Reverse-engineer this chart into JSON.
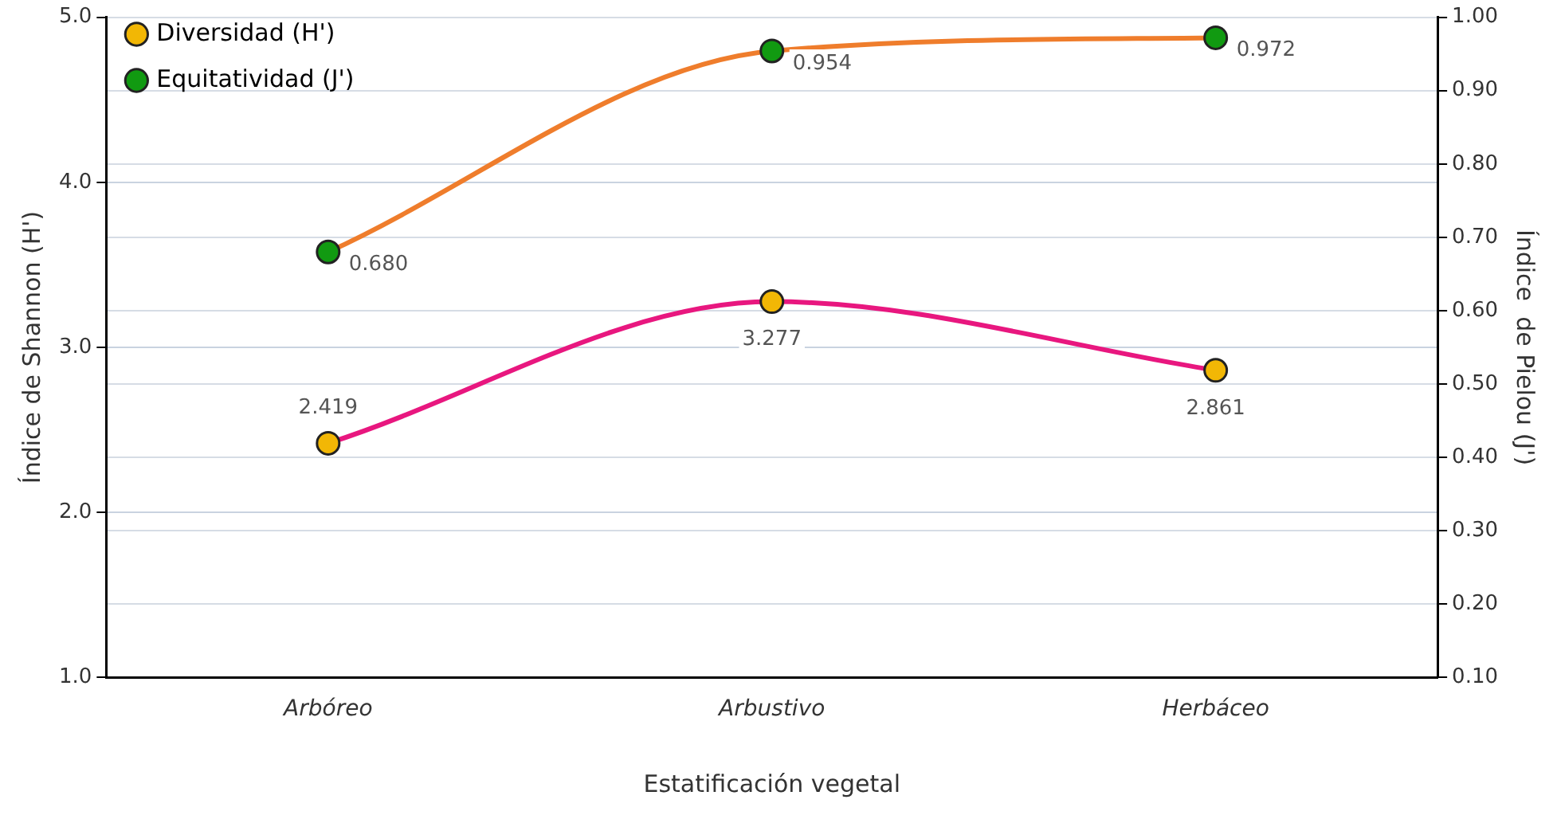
{
  "chart_data": {
    "type": "line",
    "xlabel": "Estatificación vegetal",
    "ylabel": "Índice de Shannon (H')",
    "y2label": "Índice  de Pielou (J')",
    "categories": [
      "Arbóreo",
      "Arbustivo",
      "Herbáceo"
    ],
    "series": [
      {
        "name": "Diversidad (H')",
        "color": "#e8177f",
        "colors": [
          "#f2b705",
          "#f2b705",
          "#f2b705"
        ],
        "values": [
          2.419,
          3.277,
          2.861
        ],
        "value_labels": [
          "2.419",
          "3.277",
          "2.861"
        ]
      },
      {
        "name": "Equitatividad (J')",
        "color": "#ef7d2c",
        "colors": [
          "#119a11",
          "#119a11",
          "#119a11"
        ],
        "values": [
          0.68,
          0.954,
          0.972
        ],
        "value_labels": [
          "0.680",
          "0.954",
          "0.972"
        ],
        "axis": "y2"
      }
    ],
    "ylim": [
      1,
      5
    ],
    "yticks": [
      {
        "value": 1,
        "label": "1.0"
      },
      {
        "value": 2,
        "label": "2.0"
      },
      {
        "value": 3,
        "label": "3.0"
      },
      {
        "value": 4,
        "label": "4.0"
      },
      {
        "value": 5,
        "label": "5.0"
      }
    ],
    "y2lim": [
      0.1,
      1
    ],
    "y2ticks": [
      {
        "value": 0.1,
        "label": "0.10"
      },
      {
        "value": 0.2,
        "label": "0.20"
      },
      {
        "value": 0.3,
        "label": "0.30"
      },
      {
        "value": 0.4,
        "label": "0.40"
      },
      {
        "value": 0.5,
        "label": "0.50"
      },
      {
        "value": 0.6,
        "label": "0.60"
      },
      {
        "value": 0.7,
        "label": "0.70"
      },
      {
        "value": 0.8,
        "label": "0.80"
      },
      {
        "value": 0.9,
        "label": "0.90"
      },
      {
        "value": 1,
        "label": "1.00"
      }
    ],
    "grid": "y",
    "legend": "top left",
    "marker": "circle",
    "line_style": "solid"
  }
}
